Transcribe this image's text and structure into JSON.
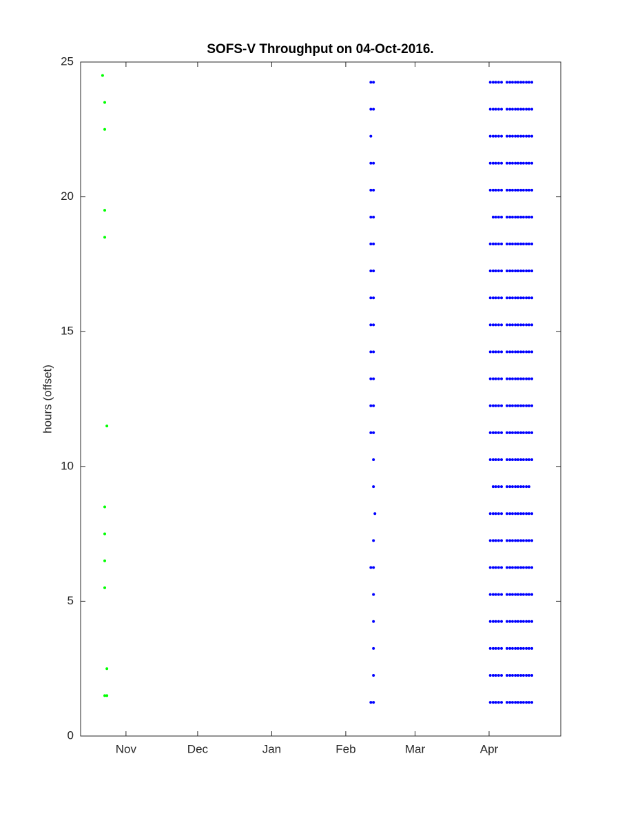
{
  "chart_data": {
    "type": "scatter",
    "title": "SOFS-V Throughput on 04-Oct-2016.",
    "y_label": "hours (offset)",
    "xlim": [
      -19,
      182
    ],
    "ylim": [
      0,
      25
    ],
    "xticks": [
      {
        "value": 0,
        "label": "Nov"
      },
      {
        "value": 30,
        "label": "Dec"
      },
      {
        "value": 61,
        "label": "Jan"
      },
      {
        "value": 92,
        "label": "Feb"
      },
      {
        "value": 121,
        "label": "Mar"
      },
      {
        "value": 152,
        "label": "Apr"
      }
    ],
    "yticks": [
      0,
      5,
      10,
      15,
      20,
      25
    ],
    "grid": false,
    "series": [
      {
        "color": "#00ff00",
        "x": [
          -9.8,
          -8.9,
          -8.9,
          -8.9,
          -8.9,
          -8,
          -8.9,
          -8.9,
          -8.9,
          -8.9,
          -8,
          -8.9,
          -8
        ],
        "y": [
          24.5,
          23.5,
          22.5,
          19.5,
          18.5,
          11.5,
          8.5,
          7.5,
          6.5,
          5.5,
          2.5,
          1.5,
          1.5
        ]
      },
      {
        "color": "#0000ff",
        "x": [
          102.5,
          103.6,
          102.5,
          103.6,
          102.5,
          102.5,
          103.6,
          102.5,
          103.6,
          102.5,
          103.6,
          102.5,
          103.6,
          102.5,
          103.6,
          102.5,
          103.6,
          102.5,
          103.6,
          102.5,
          103.6,
          102.5,
          103.6,
          102.5,
          103.6,
          102.5,
          103.6,
          103.6,
          103.6,
          104.2,
          103.6,
          102.5,
          103.6,
          103.6,
          103.6,
          103.6,
          103.6,
          102.5,
          103.6
        ],
        "y": [
          24.25,
          24.25,
          23.25,
          23.25,
          22.25,
          21.25,
          21.25,
          20.25,
          20.25,
          19.25,
          19.25,
          18.25,
          18.25,
          17.25,
          17.25,
          16.25,
          16.25,
          15.25,
          15.25,
          14.25,
          14.25,
          13.25,
          13.25,
          12.25,
          12.25,
          11.25,
          11.25,
          10.25,
          9.25,
          8.25,
          7.25,
          6.25,
          6.25,
          5.25,
          4.25,
          3.25,
          2.25,
          1.25,
          1.25
        ]
      },
      {
        "color": "#0000ff",
        "x": [
          152.5,
          153.7,
          154.8,
          156,
          157.2,
          159.5,
          160.7,
          161.8,
          163,
          164.1,
          165.3,
          166.4,
          167.6,
          168.7,
          169.9,
          152.5,
          153.7,
          154.8,
          156,
          157.2,
          159.5,
          160.7,
          161.8,
          163,
          164.1,
          165.3,
          166.4,
          167.6,
          168.7,
          169.9,
          152.5,
          153.7,
          154.8,
          156,
          157.2,
          159.5,
          160.7,
          161.8,
          163,
          164.1,
          165.3,
          166.4,
          167.6,
          168.7,
          169.9,
          152.5,
          153.7,
          154.8,
          156,
          157.2,
          159.5,
          160.7,
          161.8,
          163,
          164.1,
          165.3,
          166.4,
          167.6,
          168.7,
          169.9,
          152.5,
          153.7,
          154.8,
          156,
          157.2,
          159.5,
          160.7,
          161.8,
          163,
          164.1,
          165.3,
          166.4,
          167.6,
          168.7,
          169.9,
          153.7,
          154.8,
          156,
          157.2,
          159.5,
          160.7,
          161.8,
          163,
          164.1,
          165.3,
          166.4,
          167.6,
          168.7,
          169.9,
          152.5,
          153.7,
          154.8,
          156,
          157.2,
          159.5,
          160.7,
          161.8,
          163,
          164.1,
          165.3,
          166.4,
          167.6,
          168.7,
          169.9,
          152.5,
          153.7,
          154.8,
          156,
          157.2,
          159.5,
          160.7,
          161.8,
          163,
          164.1,
          165.3,
          166.4,
          167.6,
          168.7,
          169.9,
          152.5,
          153.7,
          154.8,
          156,
          157.2,
          159.5,
          160.7,
          161.8,
          163,
          164.1,
          165.3,
          166.4,
          167.6,
          168.7,
          169.9,
          152.5,
          153.7,
          154.8,
          156,
          157.2,
          159.5,
          160.7,
          161.8,
          163,
          164.1,
          165.3,
          166.4,
          167.6,
          168.7,
          169.9,
          152.5,
          153.7,
          154.8,
          156,
          157.2,
          159.5,
          160.7,
          161.8,
          163,
          164.1,
          165.3,
          166.4,
          167.6,
          168.7,
          169.9,
          152.5,
          153.7,
          154.8,
          156,
          157.2,
          159.5,
          160.7,
          161.8,
          163,
          164.1,
          165.3,
          166.4,
          167.6,
          168.7,
          169.9,
          152.5,
          153.7,
          154.8,
          156,
          157.2,
          159.5,
          160.7,
          161.8,
          163,
          164.1,
          165.3,
          166.4,
          167.6,
          168.7,
          169.9,
          152.5,
          153.7,
          154.8,
          156,
          157.2,
          159.5,
          160.7,
          161.8,
          163,
          164.1,
          165.3,
          166.4,
          167.6,
          168.7,
          169.9,
          152.5,
          153.7,
          154.8,
          156,
          157.2,
          159.5,
          160.7,
          161.8,
          163,
          164.1,
          165.3,
          166.4,
          167.6,
          168.7,
          169.9,
          153.7,
          154.8,
          156,
          157.2,
          159.5,
          160.7,
          161.8,
          163,
          164.1,
          165.3,
          166.4,
          167.6,
          168.7,
          152.5,
          153.7,
          154.8,
          156,
          157.2,
          159.5,
          160.7,
          161.8,
          163,
          164.1,
          165.3,
          166.4,
          167.6,
          168.7,
          169.9,
          152.5,
          153.7,
          154.8,
          156,
          157.2,
          159.5,
          160.7,
          161.8,
          163,
          164.1,
          165.3,
          166.4,
          167.6,
          168.7,
          169.9,
          152.5,
          153.7,
          154.8,
          156,
          157.2,
          159.5,
          160.7,
          161.8,
          163,
          164.1,
          165.3,
          166.4,
          167.6,
          168.7,
          169.9,
          152.5,
          153.7,
          154.8,
          156,
          157.2,
          159.5,
          160.7,
          161.8,
          163,
          164.1,
          165.3,
          166.4,
          167.6,
          168.7,
          169.9,
          152.5,
          153.7,
          154.8,
          156,
          157.2,
          159.5,
          160.7,
          161.8,
          163,
          164.1,
          165.3,
          166.4,
          167.6,
          168.7,
          169.9,
          152.5,
          153.7,
          154.8,
          156,
          157.2,
          159.5,
          160.7,
          161.8,
          163,
          164.1,
          165.3,
          166.4,
          167.6,
          168.7,
          169.9,
          152.5,
          153.7,
          154.8,
          156,
          157.2,
          159.5,
          160.7,
          161.8,
          163,
          164.1,
          165.3,
          166.4,
          167.6,
          168.7,
          169.9,
          152.5,
          153.7,
          154.8,
          156,
          157.2,
          159.5,
          160.7,
          161.8,
          163,
          164.1,
          165.3,
          166.4,
          167.6,
          168.7,
          169.9
        ],
        "y": [
          24.25,
          24.25,
          24.25,
          24.25,
          24.25,
          24.25,
          24.25,
          24.25,
          24.25,
          24.25,
          24.25,
          24.25,
          24.25,
          24.25,
          24.25,
          23.25,
          23.25,
          23.25,
          23.25,
          23.25,
          23.25,
          23.25,
          23.25,
          23.25,
          23.25,
          23.25,
          23.25,
          23.25,
          23.25,
          23.25,
          22.25,
          22.25,
          22.25,
          22.25,
          22.25,
          22.25,
          22.25,
          22.25,
          22.25,
          22.25,
          22.25,
          22.25,
          22.25,
          22.25,
          22.25,
          21.25,
          21.25,
          21.25,
          21.25,
          21.25,
          21.25,
          21.25,
          21.25,
          21.25,
          21.25,
          21.25,
          21.25,
          21.25,
          21.25,
          21.25,
          20.25,
          20.25,
          20.25,
          20.25,
          20.25,
          20.25,
          20.25,
          20.25,
          20.25,
          20.25,
          20.25,
          20.25,
          20.25,
          20.25,
          20.25,
          19.25,
          19.25,
          19.25,
          19.25,
          19.25,
          19.25,
          19.25,
          19.25,
          19.25,
          19.25,
          19.25,
          19.25,
          19.25,
          19.25,
          18.25,
          18.25,
          18.25,
          18.25,
          18.25,
          18.25,
          18.25,
          18.25,
          18.25,
          18.25,
          18.25,
          18.25,
          18.25,
          18.25,
          18.25,
          17.25,
          17.25,
          17.25,
          17.25,
          17.25,
          17.25,
          17.25,
          17.25,
          17.25,
          17.25,
          17.25,
          17.25,
          17.25,
          17.25,
          17.25,
          16.25,
          16.25,
          16.25,
          16.25,
          16.25,
          16.25,
          16.25,
          16.25,
          16.25,
          16.25,
          16.25,
          16.25,
          16.25,
          16.25,
          16.25,
          15.25,
          15.25,
          15.25,
          15.25,
          15.25,
          15.25,
          15.25,
          15.25,
          15.25,
          15.25,
          15.25,
          15.25,
          15.25,
          15.25,
          15.25,
          14.25,
          14.25,
          14.25,
          14.25,
          14.25,
          14.25,
          14.25,
          14.25,
          14.25,
          14.25,
          14.25,
          14.25,
          14.25,
          14.25,
          14.25,
          13.25,
          13.25,
          13.25,
          13.25,
          13.25,
          13.25,
          13.25,
          13.25,
          13.25,
          13.25,
          13.25,
          13.25,
          13.25,
          13.25,
          13.25,
          12.25,
          12.25,
          12.25,
          12.25,
          12.25,
          12.25,
          12.25,
          12.25,
          12.25,
          12.25,
          12.25,
          12.25,
          12.25,
          12.25,
          12.25,
          11.25,
          11.25,
          11.25,
          11.25,
          11.25,
          11.25,
          11.25,
          11.25,
          11.25,
          11.25,
          11.25,
          11.25,
          11.25,
          11.25,
          11.25,
          10.25,
          10.25,
          10.25,
          10.25,
          10.25,
          10.25,
          10.25,
          10.25,
          10.25,
          10.25,
          10.25,
          10.25,
          10.25,
          10.25,
          10.25,
          9.25,
          9.25,
          9.25,
          9.25,
          9.25,
          9.25,
          9.25,
          9.25,
          9.25,
          9.25,
          9.25,
          9.25,
          9.25,
          8.25,
          8.25,
          8.25,
          8.25,
          8.25,
          8.25,
          8.25,
          8.25,
          8.25,
          8.25,
          8.25,
          8.25,
          8.25,
          8.25,
          8.25,
          7.25,
          7.25,
          7.25,
          7.25,
          7.25,
          7.25,
          7.25,
          7.25,
          7.25,
          7.25,
          7.25,
          7.25,
          7.25,
          7.25,
          7.25,
          6.25,
          6.25,
          6.25,
          6.25,
          6.25,
          6.25,
          6.25,
          6.25,
          6.25,
          6.25,
          6.25,
          6.25,
          6.25,
          6.25,
          6.25,
          5.25,
          5.25,
          5.25,
          5.25,
          5.25,
          5.25,
          5.25,
          5.25,
          5.25,
          5.25,
          5.25,
          5.25,
          5.25,
          5.25,
          5.25,
          4.25,
          4.25,
          4.25,
          4.25,
          4.25,
          4.25,
          4.25,
          4.25,
          4.25,
          4.25,
          4.25,
          4.25,
          4.25,
          4.25,
          4.25,
          3.25,
          3.25,
          3.25,
          3.25,
          3.25,
          3.25,
          3.25,
          3.25,
          3.25,
          3.25,
          3.25,
          3.25,
          3.25,
          3.25,
          3.25,
          2.25,
          2.25,
          2.25,
          2.25,
          2.25,
          2.25,
          2.25,
          2.25,
          2.25,
          2.25,
          2.25,
          2.25,
          2.25,
          2.25,
          2.25,
          1.25,
          1.25,
          1.25,
          1.25,
          1.25,
          1.25,
          1.25,
          1.25,
          1.25,
          1.25,
          1.25,
          1.25,
          1.25,
          1.25,
          1.25
        ]
      }
    ]
  }
}
